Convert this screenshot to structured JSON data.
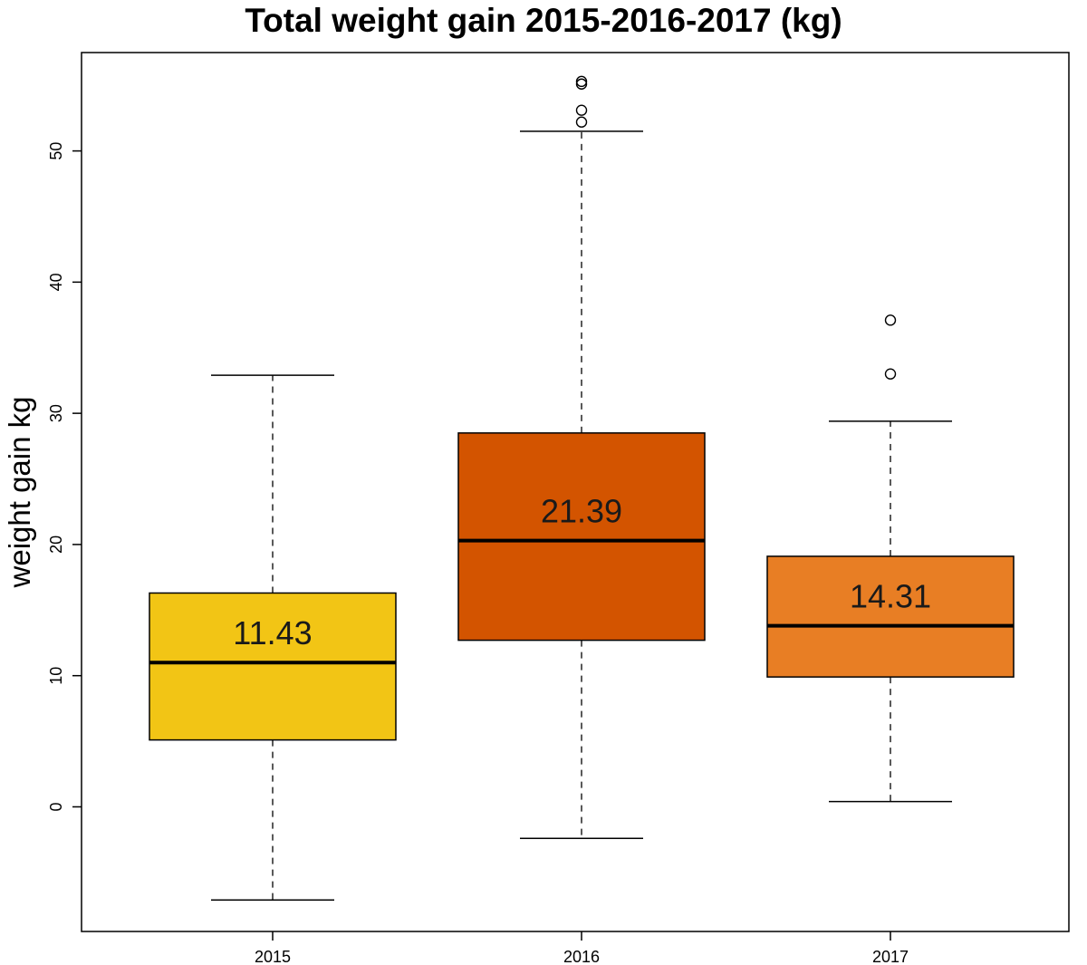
{
  "chart_data": {
    "type": "box",
    "title": "Total weight gain 2015-2016-2017 (kg)",
    "xlabel": "",
    "ylabel": "weight gain kg",
    "ylim": [
      -9.5,
      57.5
    ],
    "yticks": [
      0,
      10,
      20,
      30,
      40,
      50
    ],
    "grid": false,
    "categories": [
      "2015",
      "2016",
      "2017"
    ],
    "boxes": [
      {
        "category": "2015",
        "whisker_low": -7.1,
        "q1": 5.1,
        "median": 11.0,
        "q3": 16.3,
        "whisker_high": 32.9,
        "outliers": [],
        "label": "11.43",
        "color": "#f2c515"
      },
      {
        "category": "2016",
        "whisker_low": -2.4,
        "q1": 12.7,
        "median": 20.3,
        "q3": 28.5,
        "whisker_high": 51.5,
        "outliers": [
          52.2,
          53.1,
          55.1,
          55.3
        ],
        "label": "21.39",
        "color": "#d35400"
      },
      {
        "category": "2017",
        "whisker_low": 0.4,
        "q1": 9.9,
        "median": 13.8,
        "q3": 19.1,
        "whisker_high": 29.4,
        "outliers": [
          33.0,
          37.1
        ],
        "label": "14.31",
        "color": "#e87e24"
      }
    ]
  }
}
